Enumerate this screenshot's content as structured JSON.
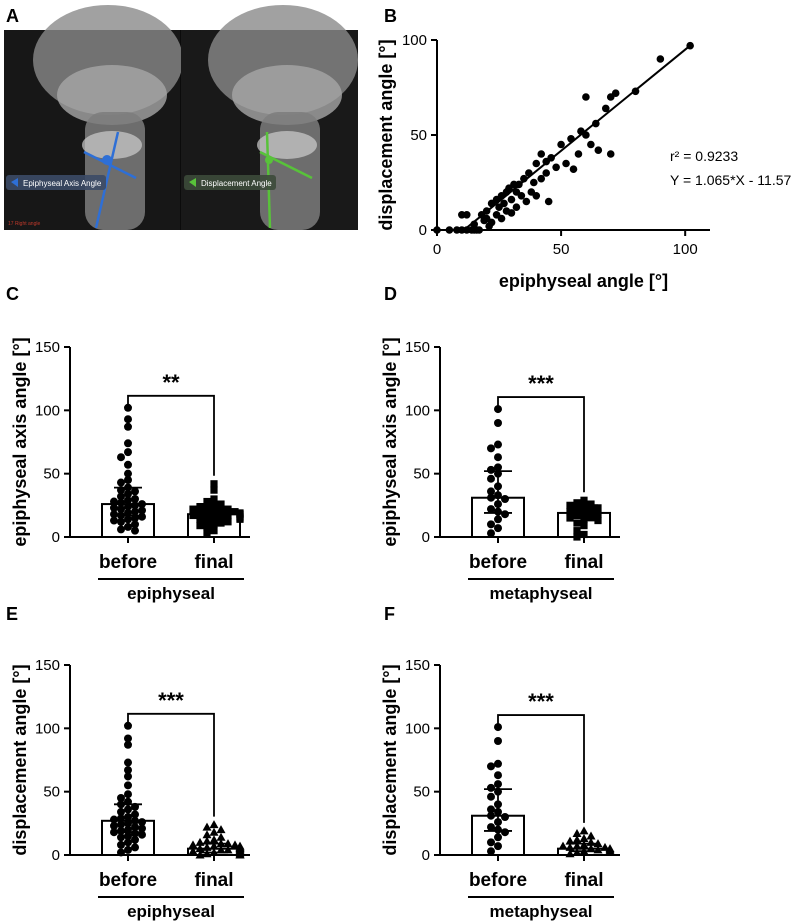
{
  "panels": {
    "A": {
      "letter": "A",
      "label_left": "Epiphyseal Axis Angle",
      "label_right": "Displacement Angle",
      "corner_text": "17 Right angle"
    },
    "B": {
      "letter": "B"
    },
    "C": {
      "letter": "C"
    },
    "D": {
      "letter": "D"
    },
    "E": {
      "letter": "E"
    },
    "F": {
      "letter": "F"
    }
  },
  "colors": {
    "blue_line": "#2e6fd6",
    "green_line": "#58c23a",
    "marker": "#000000"
  },
  "chart_data": [
    {
      "id": "B",
      "type": "scatter",
      "xlabel": "epiphyseal angle [°]",
      "ylabel": "displacement angle [°]",
      "xlim": [
        0,
        110
      ],
      "ylim": [
        0,
        100
      ],
      "xticks": [
        0,
        50,
        100
      ],
      "yticks": [
        0,
        50,
        100
      ],
      "annotation_r2": "r² = 0.9233",
      "annotation_eq": "Y = 1.065*X - 11.57",
      "fit": {
        "slope": 1.065,
        "intercept": -11.57,
        "x_range": [
          12,
          102
        ]
      },
      "points": [
        [
          0,
          0
        ],
        [
          5,
          0
        ],
        [
          8,
          0
        ],
        [
          10,
          0
        ],
        [
          12,
          0
        ],
        [
          14,
          0
        ],
        [
          15,
          0
        ],
        [
          16,
          0
        ],
        [
          17,
          0
        ],
        [
          10,
          8
        ],
        [
          12,
          8
        ],
        [
          15,
          3
        ],
        [
          18,
          8
        ],
        [
          19,
          5
        ],
        [
          20,
          10
        ],
        [
          20,
          6
        ],
        [
          21,
          2
        ],
        [
          22,
          14
        ],
        [
          22,
          4
        ],
        [
          24,
          8
        ],
        [
          24,
          16
        ],
        [
          25,
          12
        ],
        [
          26,
          18
        ],
        [
          26,
          6
        ],
        [
          27,
          14
        ],
        [
          28,
          20
        ],
        [
          28,
          10
        ],
        [
          29,
          22
        ],
        [
          30,
          16
        ],
        [
          30,
          9
        ],
        [
          31,
          24
        ],
        [
          32,
          20
        ],
        [
          32,
          12
        ],
        [
          33,
          24
        ],
        [
          34,
          18
        ],
        [
          35,
          27
        ],
        [
          36,
          15
        ],
        [
          37,
          30
        ],
        [
          38,
          20
        ],
        [
          39,
          25
        ],
        [
          40,
          35
        ],
        [
          40,
          18
        ],
        [
          42,
          40
        ],
        [
          42,
          27
        ],
        [
          44,
          36
        ],
        [
          44,
          30
        ],
        [
          45,
          15
        ],
        [
          46,
          38
        ],
        [
          48,
          33
        ],
        [
          50,
          45
        ],
        [
          52,
          35
        ],
        [
          54,
          48
        ],
        [
          55,
          32
        ],
        [
          57,
          40
        ],
        [
          58,
          52
        ],
        [
          60,
          50
        ],
        [
          60,
          70
        ],
        [
          62,
          45
        ],
        [
          64,
          56
        ],
        [
          65,
          42
        ],
        [
          68,
          64
        ],
        [
          70,
          70
        ],
        [
          70,
          40
        ],
        [
          72,
          72
        ],
        [
          80,
          73
        ],
        [
          90,
          90
        ],
        [
          102,
          97
        ]
      ]
    },
    {
      "id": "C",
      "type": "bar",
      "ylabel": "epiphyseal axis angle [°]",
      "ylim": [
        0,
        150
      ],
      "yticks": [
        0,
        50,
        100,
        150
      ],
      "categories": [
        "before",
        "final"
      ],
      "group_label": "epiphyseal",
      "significance": "**",
      "series": [
        {
          "name": "before",
          "median": 26,
          "iqr": [
            17,
            39
          ],
          "marker": "circle",
          "points": [
            102,
            93,
            87,
            74,
            67,
            63,
            57,
            50,
            45,
            43,
            39,
            37,
            36,
            34,
            32,
            30,
            29,
            28,
            27,
            26,
            25,
            24,
            23,
            22,
            21,
            20,
            19,
            18,
            17,
            16,
            15,
            14,
            13,
            12,
            10,
            8,
            6,
            5
          ]
        },
        {
          "name": "final",
          "median": 18,
          "iqr": [
            15,
            22
          ],
          "marker": "square",
          "points": [
            42,
            37,
            30,
            28,
            26,
            25,
            24,
            23,
            22,
            22,
            21,
            20,
            20,
            19,
            19,
            18,
            18,
            18,
            17,
            17,
            16,
            16,
            15,
            15,
            14,
            14,
            13,
            12,
            11,
            10,
            9,
            8,
            5,
            3
          ]
        }
      ]
    },
    {
      "id": "D",
      "type": "bar",
      "ylabel": "epiphyseal axis angle [°]",
      "ylim": [
        0,
        150
      ],
      "yticks": [
        0,
        50,
        100,
        150
      ],
      "categories": [
        "before",
        "final"
      ],
      "group_label": "metaphyseal",
      "significance": "***",
      "series": [
        {
          "name": "before",
          "median": 31,
          "iqr": [
            19,
            52
          ],
          "marker": "circle",
          "points": [
            101,
            90,
            73,
            70,
            63,
            55,
            53,
            50,
            46,
            40,
            36,
            33,
            31,
            30,
            26,
            22,
            20,
            18,
            14,
            10,
            7,
            3
          ]
        },
        {
          "name": "final",
          "median": 19,
          "iqr": [
            13,
            25
          ],
          "marker": "square",
          "points": [
            29,
            27,
            26,
            25,
            24,
            23,
            22,
            21,
            20,
            19,
            18,
            17,
            16,
            15,
            14,
            13,
            11,
            9,
            5,
            2,
            0
          ]
        }
      ]
    },
    {
      "id": "E",
      "type": "bar",
      "ylabel": "displacement angle [°]",
      "ylim": [
        0,
        150
      ],
      "yticks": [
        0,
        50,
        100,
        150
      ],
      "categories": [
        "before",
        "final"
      ],
      "group_label": "epiphyseal",
      "significance": "***",
      "series": [
        {
          "name": "before",
          "median": 27,
          "iqr": [
            18,
            40
          ],
          "marker": "circle",
          "points": [
            102,
            92,
            87,
            73,
            67,
            62,
            55,
            48,
            45,
            42,
            40,
            38,
            36,
            34,
            32,
            30,
            29,
            28,
            27,
            26,
            25,
            24,
            23,
            22,
            21,
            20,
            19,
            18,
            17,
            16,
            15,
            14,
            12,
            10,
            8,
            6,
            4,
            2
          ]
        },
        {
          "name": "final",
          "median": 5,
          "iqr": [
            2,
            9
          ],
          "marker": "triangle",
          "points": [
            24,
            22,
            20,
            18,
            16,
            14,
            12,
            11,
            10,
            9,
            9,
            8,
            8,
            7,
            7,
            6,
            6,
            5,
            5,
            5,
            4,
            4,
            4,
            3,
            3,
            3,
            2,
            2,
            2,
            1,
            1,
            0,
            0,
            0
          ]
        }
      ]
    },
    {
      "id": "F",
      "type": "bar",
      "ylabel": "displacement angle [°]",
      "ylim": [
        0,
        150
      ],
      "yticks": [
        0,
        50,
        100,
        150
      ],
      "categories": [
        "before",
        "final"
      ],
      "group_label": "metaphyseal",
      "significance": "***",
      "series": [
        {
          "name": "before",
          "median": 31,
          "iqr": [
            19,
            52
          ],
          "marker": "circle",
          "points": [
            101,
            90,
            72,
            70,
            63,
            56,
            53,
            50,
            46,
            40,
            36,
            34,
            31,
            30,
            26,
            22,
            20,
            18,
            14,
            10,
            7,
            3
          ]
        },
        {
          "name": "final",
          "median": 5,
          "iqr": [
            3,
            9
          ],
          "marker": "triangle",
          "points": [
            19,
            17,
            15,
            13,
            12,
            11,
            10,
            9,
            8,
            7,
            7,
            6,
            6,
            5,
            5,
            4,
            4,
            3,
            3,
            2,
            1
          ]
        }
      ]
    }
  ]
}
